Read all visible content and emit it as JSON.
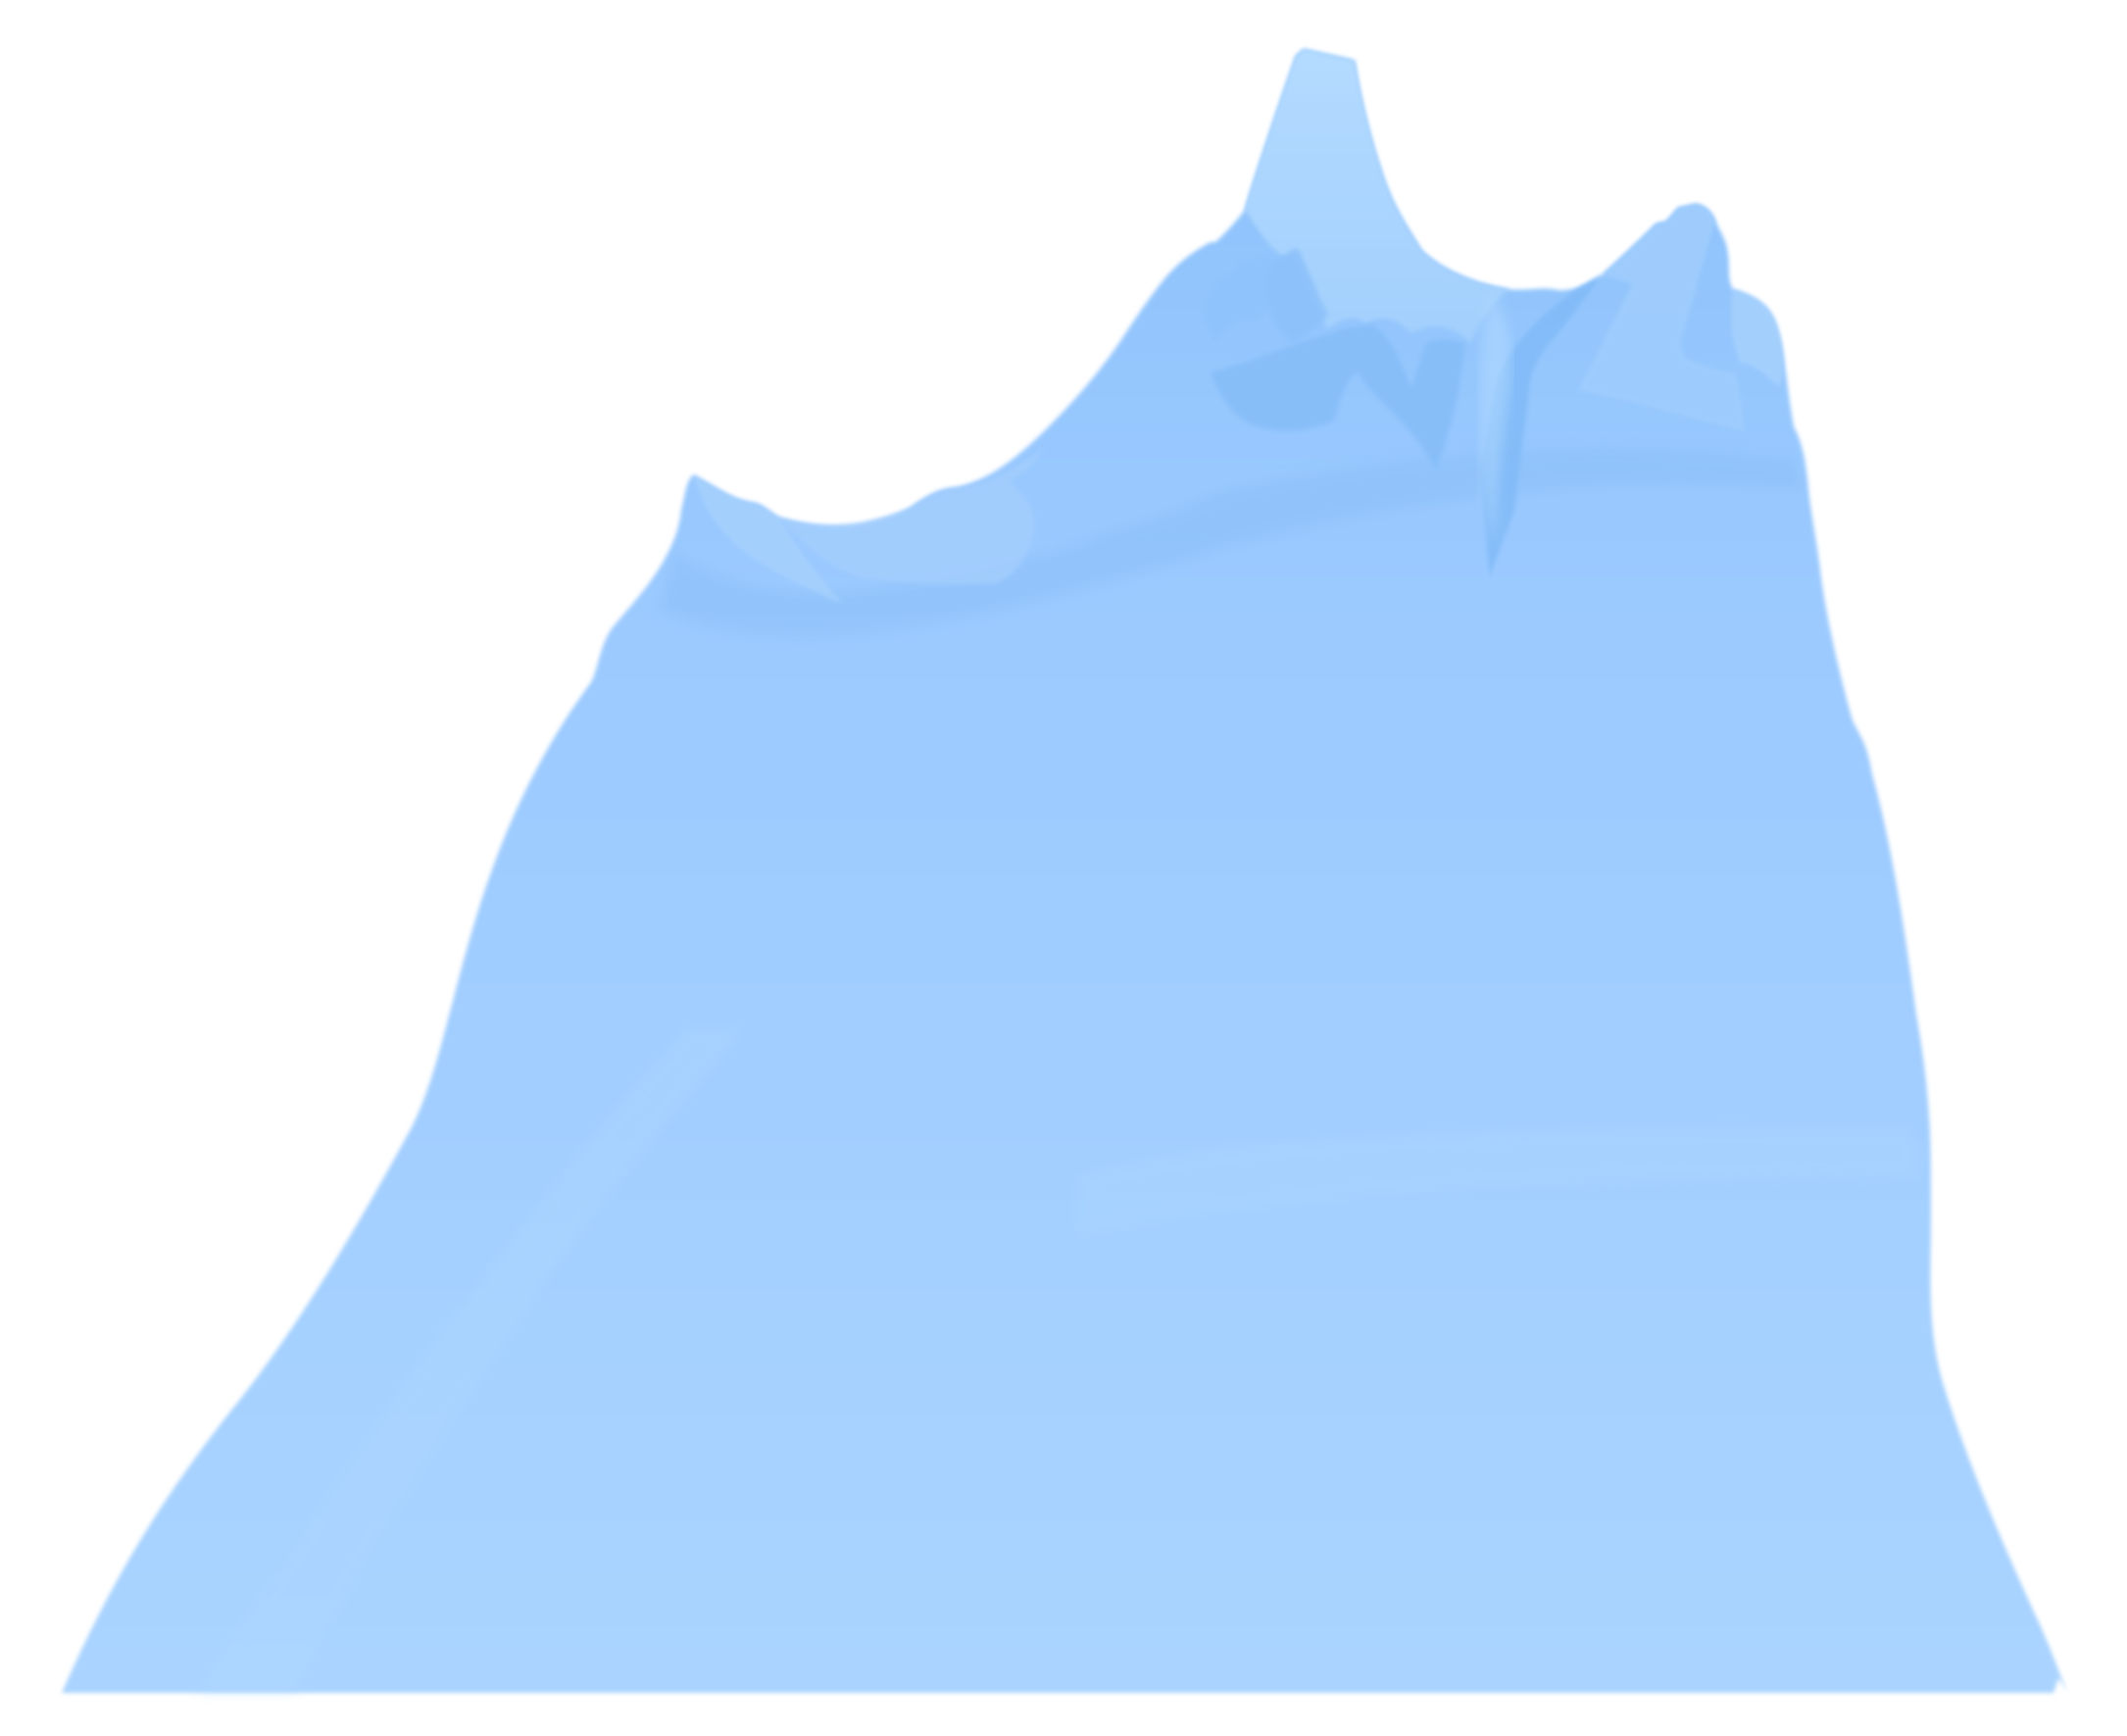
{
  "image": {
    "subject": "iceberg-icon",
    "colors": {
      "background": "#ffffff",
      "body_light": "#aad4ff",
      "body_mid": "#9ccaff",
      "body_dark": "#8cc2fb",
      "shadow": "#7db8f6",
      "highlight": "#b4dbff"
    }
  }
}
